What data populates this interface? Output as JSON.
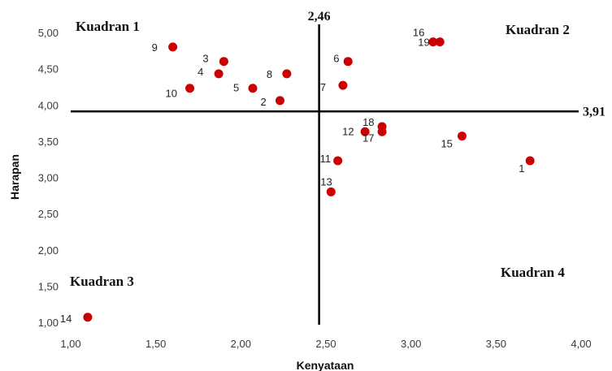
{
  "chart_data": {
    "type": "scatter",
    "xlabel": "Kenyataan",
    "ylabel": "Harapan",
    "xlim": [
      1.0,
      4.0
    ],
    "ylim": [
      1.0,
      5.0
    ],
    "x_ticks": [
      "1,00",
      "1,50",
      "2,00",
      "2,50",
      "3,00",
      "3,50",
      "4,00"
    ],
    "y_ticks": [
      "1,00",
      "1,50",
      "2,00",
      "2,50",
      "3,00",
      "3,50",
      "4,00",
      "4,50",
      "5,00"
    ],
    "grid": false,
    "point_color": "#cc0000",
    "reference_lines": {
      "x": {
        "value": 2.46,
        "label": "2,46"
      },
      "y": {
        "value": 3.91,
        "label": "3,91"
      }
    },
    "quadrant_labels": {
      "q1": "Kuadran 1",
      "q2": "Kuadran 2",
      "q3": "Kuadran 3",
      "q4": "Kuadran 4"
    },
    "points": [
      {
        "label": "1",
        "x": 3.7,
        "y": 3.23
      },
      {
        "label": "2",
        "x": 2.23,
        "y": 4.06
      },
      {
        "label": "3",
        "x": 1.9,
        "y": 4.6
      },
      {
        "label": "4",
        "x": 1.87,
        "y": 4.43
      },
      {
        "label": "5",
        "x": 2.07,
        "y": 4.23
      },
      {
        "label": "6",
        "x": 2.63,
        "y": 4.6
      },
      {
        "label": "7",
        "x": 2.6,
        "y": 4.27
      },
      {
        "label": "8",
        "x": 2.27,
        "y": 4.43
      },
      {
        "label": "9",
        "x": 1.6,
        "y": 4.8
      },
      {
        "label": "10",
        "x": 1.7,
        "y": 4.23
      },
      {
        "label": "11",
        "x": 2.57,
        "y": 3.23
      },
      {
        "label": "12",
        "x": 2.73,
        "y": 3.63
      },
      {
        "label": "13",
        "x": 2.53,
        "y": 2.8
      },
      {
        "label": "14",
        "x": 1.1,
        "y": 1.07
      },
      {
        "label": "15",
        "x": 3.3,
        "y": 3.57
      },
      {
        "label": "16",
        "x": 3.13,
        "y": 4.87
      },
      {
        "label": "17",
        "x": 2.83,
        "y": 3.63
      },
      {
        "label": "18",
        "x": 2.83,
        "y": 3.7
      },
      {
        "label": "19",
        "x": 3.17,
        "y": 4.87
      }
    ]
  }
}
